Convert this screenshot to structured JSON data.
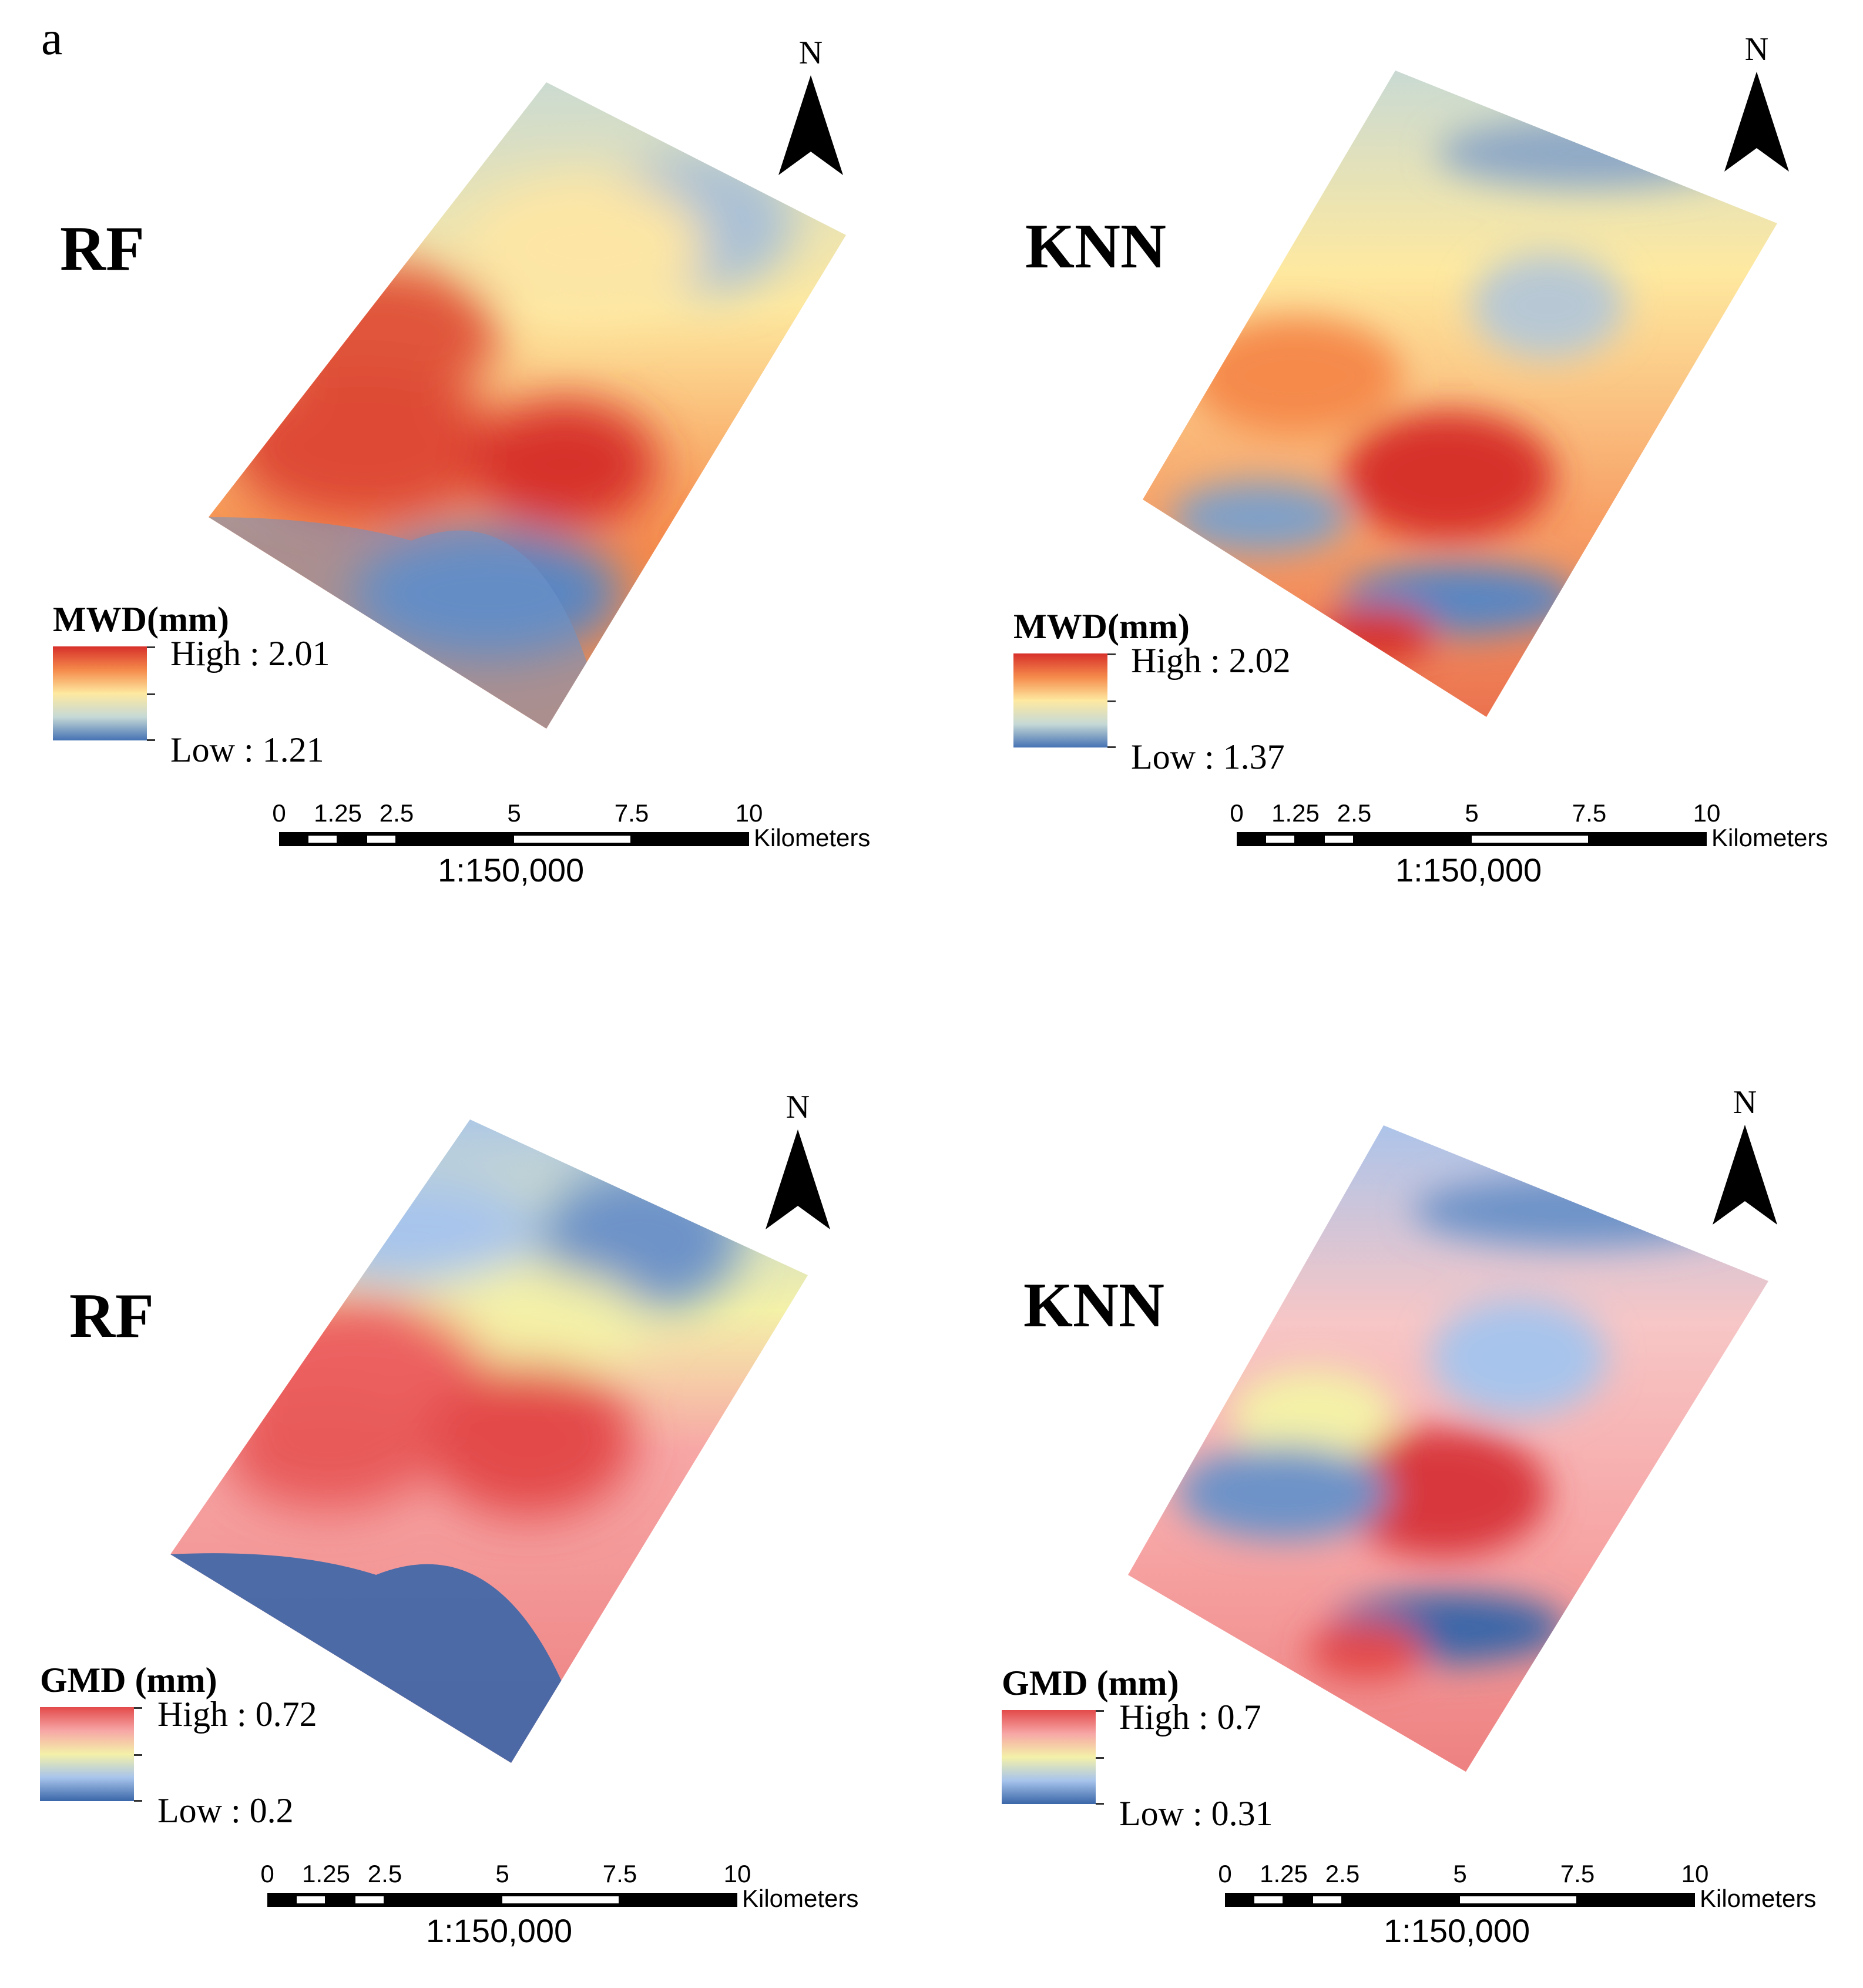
{
  "figure_label": "a",
  "north_letter": "N",
  "scale": {
    "ticks": [
      "0",
      "1.25",
      "2.5",
      "5",
      "7.5",
      "10"
    ],
    "unit": "Kilometers",
    "ratio": "1:150,000"
  },
  "colors": {
    "mwd_ramp": [
      "#d7302a",
      "#f58a4b",
      "#fee9a0",
      "#c6d9d6",
      "#4572b4"
    ],
    "gmd_ramp": [
      "#e34a4a",
      "#f7a6a6",
      "#f4f1a8",
      "#a7c4ec",
      "#3a66a8"
    ]
  },
  "panels": [
    {
      "title": "RF",
      "legend_title": "MWD(mm)",
      "high": "High : 2.01",
      "low": "Low : 1.21"
    },
    {
      "title": "KNN",
      "legend_title": "MWD(mm)",
      "high": "High : 2.02",
      "low": "Low : 1.37"
    },
    {
      "title": "RF",
      "legend_title": "GMD (mm)",
      "high": "High : 0.72",
      "low": "Low : 0.2"
    },
    {
      "title": "KNN",
      "legend_title": "GMD (mm)",
      "high": "High : 0.7",
      "low": "Low : 0.31"
    }
  ]
}
